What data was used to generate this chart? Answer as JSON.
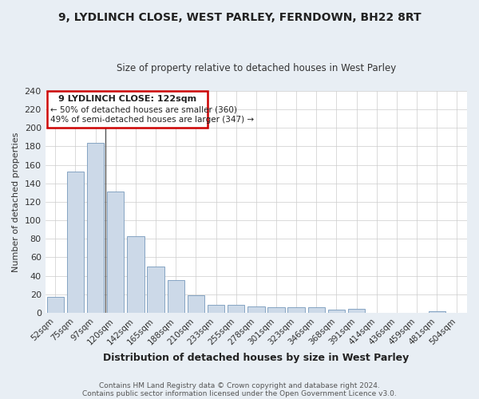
{
  "title": "9, LYDLINCH CLOSE, WEST PARLEY, FERNDOWN, BH22 8RT",
  "subtitle": "Size of property relative to detached houses in West Parley",
  "xlabel": "Distribution of detached houses by size in West Parley",
  "ylabel": "Number of detached properties",
  "categories": [
    "52sqm",
    "75sqm",
    "97sqm",
    "120sqm",
    "142sqm",
    "165sqm",
    "188sqm",
    "210sqm",
    "233sqm",
    "255sqm",
    "278sqm",
    "301sqm",
    "323sqm",
    "346sqm",
    "368sqm",
    "391sqm",
    "414sqm",
    "436sqm",
    "459sqm",
    "481sqm",
    "504sqm"
  ],
  "values": [
    17,
    153,
    184,
    131,
    83,
    50,
    35,
    19,
    9,
    9,
    7,
    6,
    6,
    6,
    3,
    4,
    0,
    0,
    0,
    2,
    0
  ],
  "bar_color": "#ccd9e8",
  "bar_edge_color": "#7799bb",
  "annotation_title": "9 LYDLINCH CLOSE: 122sqm",
  "annotation_line1": "← 50% of detached houses are smaller (360)",
  "annotation_line2": "49% of semi-detached houses are larger (347) →",
  "annotation_box_color": "#cc0000",
  "vline_x": 3.0,
  "ylim": [
    0,
    240
  ],
  "yticks": [
    0,
    20,
    40,
    60,
    80,
    100,
    120,
    140,
    160,
    180,
    200,
    220,
    240
  ],
  "footer_line1": "Contains HM Land Registry data © Crown copyright and database right 2024.",
  "footer_line2": "Contains public sector information licensed under the Open Government Licence v3.0.",
  "background_color": "#e8eef4",
  "plot_background": "#ffffff"
}
